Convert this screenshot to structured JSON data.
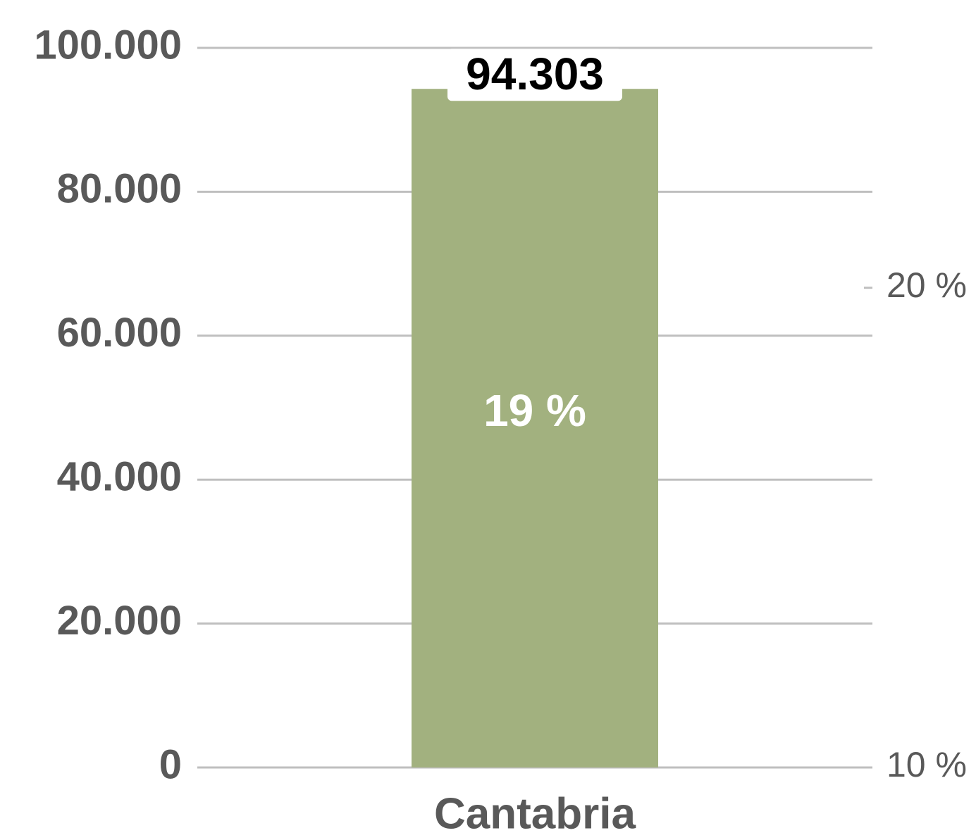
{
  "chart_data": {
    "type": "bar",
    "categories": [
      "Cantabria"
    ],
    "series": [
      {
        "color": "#a2b17f",
        "values": [
          94303
        ],
        "value_labels": [
          "94.303"
        ]
      },
      {
        "axis": "y2",
        "values": [
          19
        ],
        "value_labels": [
          "19 %"
        ]
      }
    ],
    "ylim": [
      0,
      100000
    ],
    "yticks": [
      0,
      {
        "value": 20000,
        "label": "20.000"
      },
      {
        "value": 40000,
        "label": "40.000"
      },
      {
        "value": 60000,
        "label": "60.000"
      },
      {
        "value": 80000,
        "label": "80.000"
      },
      {
        "value": 100000,
        "label": "100.000"
      }
    ],
    "y2lim": [
      10,
      25
    ],
    "y2ticks": [
      {
        "value": 10,
        "label": "10 %"
      },
      {
        "value": 20,
        "label": "20 %"
      }
    ],
    "grid": true
  }
}
